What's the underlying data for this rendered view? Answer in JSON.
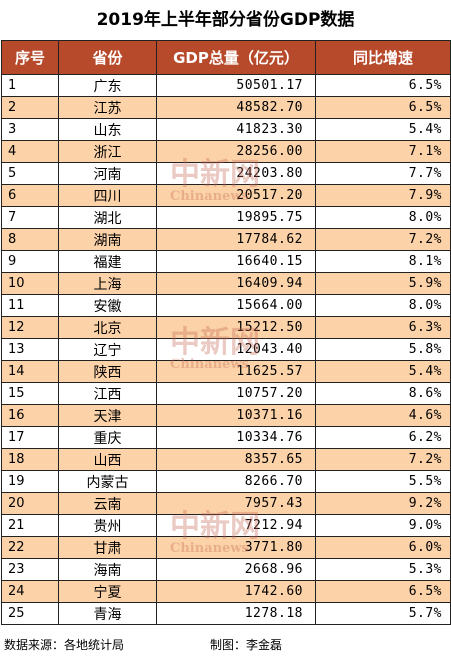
{
  "title": "2019年上半年部分省份GDP数据",
  "table": {
    "headers": [
      "序号",
      "省份",
      "GDP总量（亿元）",
      "同比增速"
    ],
    "rows": [
      [
        "1",
        "广东",
        "50501.17",
        "6.5%"
      ],
      [
        "2",
        "江苏",
        "48582.70",
        "6.5%"
      ],
      [
        "3",
        "山东",
        "41823.30",
        "5.4%"
      ],
      [
        "4",
        "浙江",
        "28256.00",
        "7.1%"
      ],
      [
        "5",
        "河南",
        "24203.80",
        "7.7%"
      ],
      [
        "6",
        "四川",
        "20517.20",
        "7.9%"
      ],
      [
        "7",
        "湖北",
        "19895.75",
        "8.0%"
      ],
      [
        "8",
        "湖南",
        "17784.62",
        "7.2%"
      ],
      [
        "9",
        "福建",
        "16640.15",
        "8.1%"
      ],
      [
        "10",
        "上海",
        "16409.94",
        "5.9%"
      ],
      [
        "11",
        "安徽",
        "15664.00",
        "8.0%"
      ],
      [
        "12",
        "北京",
        "15212.50",
        "6.3%"
      ],
      [
        "13",
        "辽宁",
        "12043.40",
        "5.8%"
      ],
      [
        "14",
        "陕西",
        "11625.57",
        "5.4%"
      ],
      [
        "15",
        "江西",
        "10757.20",
        "8.6%"
      ],
      [
        "16",
        "天津",
        "10371.16",
        "4.6%"
      ],
      [
        "17",
        "重庆",
        "10334.76",
        "6.2%"
      ],
      [
        "18",
        "山西",
        "8357.65",
        "7.2%"
      ],
      [
        "19",
        "内蒙古",
        "8266.70",
        "5.5%"
      ],
      [
        "20",
        "云南",
        "7957.43",
        "9.2%"
      ],
      [
        "21",
        "贵州",
        "7212.94",
        "9.0%"
      ],
      [
        "22",
        "甘肃",
        "3771.80",
        "6.0%"
      ],
      [
        "23",
        "海南",
        "2668.96",
        "5.3%"
      ],
      [
        "24",
        "宁夏",
        "1742.60",
        "6.5%"
      ],
      [
        "25",
        "青海",
        "1278.18",
        "5.7%"
      ]
    ]
  },
  "footer": {
    "source": "数据来源：各地统计局",
    "author": "制图：李金磊"
  },
  "watermark": {
    "cn": "中新网",
    "en": "Chinanews"
  },
  "colors": {
    "header_bg": "#b84a2c",
    "alt_row_bg": "#fcd2a8"
  }
}
